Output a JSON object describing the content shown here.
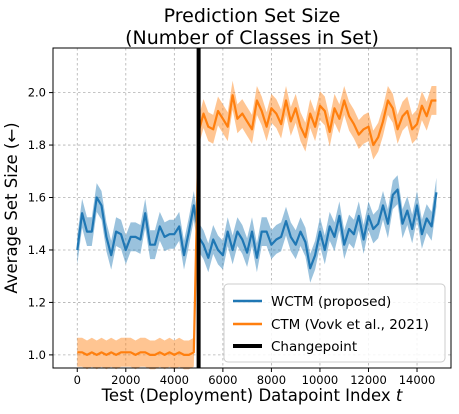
{
  "chart_data": {
    "type": "line",
    "title_line1": "Prediction Set Size",
    "title_line2": "(Number of Classes in Set)",
    "xlabel": "Test (Deployment) Datapoint Index",
    "xlabel_var": "t",
    "ylabel": "Average Set Size (←)",
    "xlim": [
      -1000,
      15400
    ],
    "ylim": [
      0.95,
      2.17
    ],
    "xticks": [
      0,
      2000,
      4000,
      6000,
      8000,
      10000,
      12000,
      14000
    ],
    "yticks": [
      1.0,
      1.2,
      1.4,
      1.6,
      1.8,
      2.0
    ],
    "grid": true,
    "legend_placement": "lower-right",
    "changepoint_x": 5000,
    "changepoint_label": "Changepoint",
    "series": [
      {
        "name": "WCTM (proposed)",
        "color": "#1f77b4",
        "x": [
          0,
          200,
          400,
          600,
          800,
          1000,
          1200,
          1400,
          1600,
          1800,
          2000,
          2200,
          2400,
          2600,
          2800,
          3000,
          3200,
          3400,
          3600,
          3800,
          4000,
          4200,
          4400,
          4600,
          4800,
          5000,
          5200,
          5400,
          5600,
          5800,
          6000,
          6200,
          6400,
          6600,
          6800,
          7000,
          7200,
          7400,
          7600,
          7800,
          8000,
          8200,
          8400,
          8600,
          8800,
          9000,
          9200,
          9400,
          9600,
          9800,
          10000,
          10200,
          10400,
          10600,
          10800,
          11000,
          11200,
          11400,
          11600,
          11800,
          12000,
          12200,
          12400,
          12600,
          12800,
          13000,
          13200,
          13400,
          13600,
          13800,
          14000,
          14200,
          14400,
          14600,
          14800
        ],
        "y": [
          1.4,
          1.54,
          1.47,
          1.47,
          1.6,
          1.57,
          1.45,
          1.38,
          1.47,
          1.46,
          1.4,
          1.45,
          1.45,
          1.44,
          1.54,
          1.42,
          1.42,
          1.49,
          1.45,
          1.46,
          1.46,
          1.49,
          1.38,
          1.47,
          1.57,
          1.45,
          1.42,
          1.37,
          1.44,
          1.4,
          1.38,
          1.47,
          1.4,
          1.47,
          1.44,
          1.39,
          1.47,
          1.37,
          1.47,
          1.47,
          1.42,
          1.44,
          1.45,
          1.51,
          1.45,
          1.42,
          1.47,
          1.43,
          1.33,
          1.38,
          1.47,
          1.4,
          1.49,
          1.45,
          1.53,
          1.42,
          1.48,
          1.46,
          1.53,
          1.44,
          1.53,
          1.48,
          1.5,
          1.57,
          1.5,
          1.61,
          1.63,
          1.5,
          1.55,
          1.48,
          1.57,
          1.46,
          1.52,
          1.49,
          1.62
        ],
        "band": 0.055
      },
      {
        "name": "CTM (Vovk et al., 2021)",
        "color": "#ff7f0e",
        "x": [
          0,
          200,
          400,
          600,
          800,
          1000,
          1200,
          1400,
          1600,
          1800,
          2000,
          2200,
          2400,
          2600,
          2800,
          3000,
          3200,
          3400,
          3600,
          3800,
          4000,
          4200,
          4400,
          4600,
          4800,
          5000,
          5200,
          5400,
          5600,
          5800,
          6000,
          6200,
          6400,
          6600,
          6800,
          7000,
          7200,
          7400,
          7600,
          7800,
          8000,
          8200,
          8400,
          8600,
          8800,
          9000,
          9200,
          9400,
          9600,
          9800,
          10000,
          10200,
          10400,
          10600,
          10800,
          11000,
          11200,
          11400,
          11600,
          11800,
          12000,
          12200,
          12400,
          12600,
          12800,
          13000,
          13200,
          13400,
          13600,
          13800,
          14000,
          14200,
          14400,
          14600,
          14800
        ],
        "y": [
          1.01,
          1.01,
          1.0,
          1.01,
          1.0,
          1.01,
          1.0,
          1.01,
          1.0,
          1.01,
          1.01,
          1.01,
          1.0,
          1.01,
          1.01,
          1.0,
          1.0,
          1.01,
          1.0,
          1.01,
          1.0,
          1.01,
          1.0,
          1.0,
          1.01,
          1.85,
          1.92,
          1.87,
          1.86,
          1.93,
          1.9,
          1.87,
          1.99,
          1.9,
          1.92,
          1.89,
          1.86,
          1.97,
          1.93,
          1.87,
          1.94,
          1.92,
          1.88,
          1.97,
          1.89,
          1.94,
          1.87,
          1.83,
          1.92,
          1.87,
          1.95,
          1.93,
          1.85,
          1.94,
          1.9,
          1.97,
          1.91,
          1.88,
          1.84,
          1.86,
          1.87,
          1.8,
          1.83,
          1.89,
          1.97,
          1.94,
          1.86,
          1.91,
          1.93,
          1.86,
          1.88,
          1.95,
          1.91,
          1.97,
          1.97
        ],
        "band": 0.055
      }
    ]
  }
}
